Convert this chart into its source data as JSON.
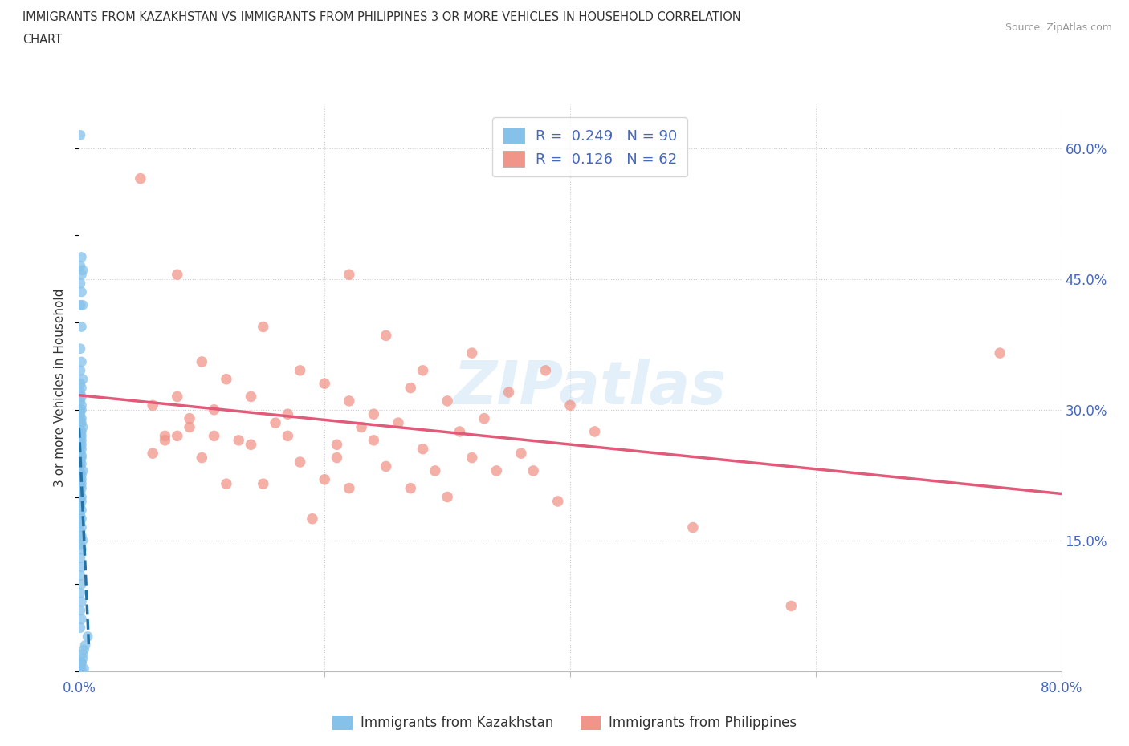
{
  "title_line1": "IMMIGRANTS FROM KAZAKHSTAN VS IMMIGRANTS FROM PHILIPPINES 3 OR MORE VEHICLES IN HOUSEHOLD CORRELATION",
  "title_line2": "CHART",
  "source_text": "Source: ZipAtlas.com",
  "ylabel": "3 or more Vehicles in Household",
  "watermark": "ZIPatlas",
  "xlim": [
    0.0,
    0.8
  ],
  "ylim": [
    0.0,
    0.65
  ],
  "legend_label1": "Immigrants from Kazakhstan",
  "legend_label2": "Immigrants from Philippines",
  "color_kaz": "#85C1E9",
  "color_phi": "#F1948A",
  "line_color_kaz": "#2471A3",
  "line_color_phi": "#E05A7A",
  "background_color": "#ffffff",
  "grid_color": "#cccccc",
  "kaz_x": [
    0.001,
    0.002,
    0.001,
    0.003,
    0.002,
    0.001,
    0.002,
    0.003,
    0.001,
    0.002,
    0.001,
    0.002,
    0.001,
    0.003,
    0.001,
    0.002,
    0.001,
    0.002,
    0.001,
    0.002,
    0.001,
    0.002,
    0.001,
    0.002,
    0.001,
    0.002,
    0.001,
    0.003,
    0.001,
    0.002,
    0.001,
    0.002,
    0.001,
    0.002,
    0.001,
    0.002,
    0.001,
    0.002,
    0.001,
    0.002,
    0.001,
    0.002,
    0.001,
    0.002,
    0.001,
    0.003,
    0.001,
    0.002,
    0.001,
    0.002,
    0.001,
    0.002,
    0.001,
    0.002,
    0.001,
    0.002,
    0.001,
    0.002,
    0.001,
    0.002,
    0.001,
    0.002,
    0.001,
    0.002,
    0.001,
    0.002,
    0.003,
    0.001,
    0.002,
    0.001,
    0.002,
    0.001,
    0.002,
    0.001,
    0.002,
    0.001,
    0.002,
    0.001,
    0.007,
    0.005,
    0.004,
    0.003,
    0.003,
    0.002,
    0.002,
    0.001,
    0.001,
    0.004,
    0.001,
    0.002
  ],
  "kaz_y": [
    0.615,
    0.475,
    0.465,
    0.46,
    0.455,
    0.445,
    0.435,
    0.42,
    0.42,
    0.395,
    0.37,
    0.355,
    0.345,
    0.335,
    0.33,
    0.325,
    0.32,
    0.315,
    0.31,
    0.305,
    0.3,
    0.3,
    0.295,
    0.29,
    0.29,
    0.285,
    0.285,
    0.28,
    0.275,
    0.275,
    0.27,
    0.27,
    0.265,
    0.265,
    0.26,
    0.26,
    0.255,
    0.255,
    0.25,
    0.248,
    0.245,
    0.245,
    0.24,
    0.238,
    0.235,
    0.23,
    0.228,
    0.225,
    0.222,
    0.22,
    0.218,
    0.215,
    0.212,
    0.21,
    0.205,
    0.2,
    0.198,
    0.195,
    0.19,
    0.185,
    0.18,
    0.175,
    0.17,
    0.165,
    0.16,
    0.155,
    0.15,
    0.145,
    0.14,
    0.13,
    0.12,
    0.11,
    0.1,
    0.09,
    0.08,
    0.07,
    0.06,
    0.05,
    0.04,
    0.03,
    0.025,
    0.02,
    0.015,
    0.01,
    0.01,
    0.007,
    0.005,
    0.003,
    0.002,
    0.001
  ],
  "phi_x": [
    0.05,
    0.22,
    0.08,
    0.15,
    0.25,
    0.32,
    0.1,
    0.18,
    0.28,
    0.38,
    0.12,
    0.2,
    0.27,
    0.35,
    0.08,
    0.14,
    0.22,
    0.3,
    0.4,
    0.06,
    0.11,
    0.17,
    0.24,
    0.33,
    0.09,
    0.16,
    0.23,
    0.31,
    0.42,
    0.07,
    0.13,
    0.21,
    0.28,
    0.36,
    0.1,
    0.18,
    0.25,
    0.34,
    0.75,
    0.08,
    0.15,
    0.22,
    0.3,
    0.39,
    0.12,
    0.2,
    0.27,
    0.5,
    0.06,
    0.09,
    0.17,
    0.24,
    0.32,
    0.07,
    0.14,
    0.21,
    0.29,
    0.37,
    0.11,
    0.19,
    0.26,
    0.58
  ],
  "phi_y": [
    0.565,
    0.455,
    0.455,
    0.395,
    0.385,
    0.365,
    0.355,
    0.345,
    0.345,
    0.345,
    0.335,
    0.33,
    0.325,
    0.32,
    0.315,
    0.315,
    0.31,
    0.31,
    0.305,
    0.305,
    0.3,
    0.295,
    0.295,
    0.29,
    0.29,
    0.285,
    0.28,
    0.275,
    0.275,
    0.27,
    0.265,
    0.26,
    0.255,
    0.25,
    0.245,
    0.24,
    0.235,
    0.23,
    0.365,
    0.27,
    0.215,
    0.21,
    0.2,
    0.195,
    0.215,
    0.22,
    0.21,
    0.165,
    0.25,
    0.28,
    0.27,
    0.265,
    0.245,
    0.265,
    0.26,
    0.245,
    0.23,
    0.23,
    0.27,
    0.175,
    0.285,
    0.075
  ]
}
